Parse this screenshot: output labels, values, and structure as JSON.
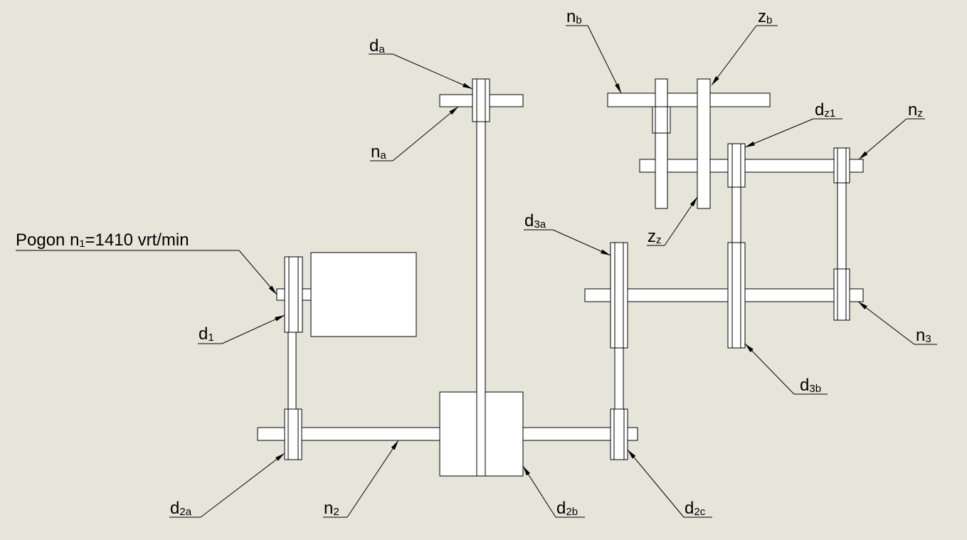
{
  "drive_label": "Pogon n₁=1410 vrt/min",
  "labels": {
    "da": {
      "main": "d",
      "sub": "a"
    },
    "na": {
      "main": "n",
      "sub": "a"
    },
    "nb": {
      "main": "n",
      "sub": "b"
    },
    "zb": {
      "main": "z",
      "sub": "b"
    },
    "dz1": {
      "main": "d",
      "sub": "z1"
    },
    "nz": {
      "main": "n",
      "sub": "z"
    },
    "zz": {
      "main": "z",
      "sub": "z"
    },
    "d3a": {
      "main": "d",
      "sub": "3a"
    },
    "d1": {
      "main": "d",
      "sub": "1"
    },
    "n3": {
      "main": "n",
      "sub": "3"
    },
    "d3b": {
      "main": "d",
      "sub": "3b"
    },
    "d2a": {
      "main": "d",
      "sub": "2a"
    },
    "n2": {
      "main": "n",
      "sub": "2"
    },
    "d2b": {
      "main": "d",
      "sub": "2b"
    },
    "d2c": {
      "main": "d",
      "sub": "2c"
    }
  },
  "colors": {
    "background": "#e6e5da",
    "line": "#000000",
    "part_fill": "#ffffff"
  }
}
